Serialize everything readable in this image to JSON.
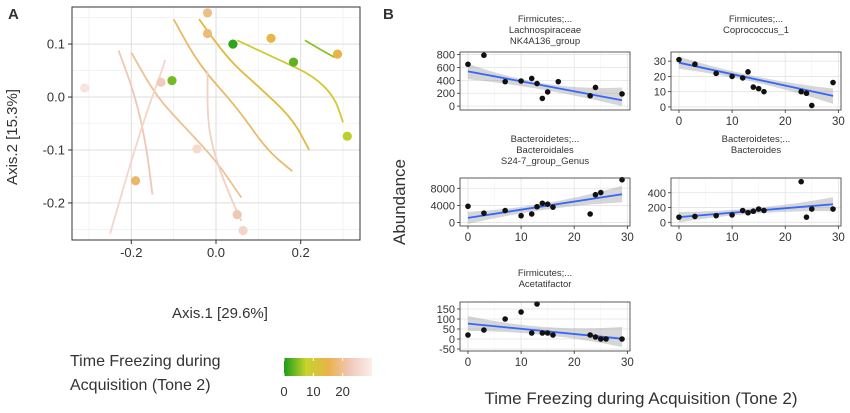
{
  "panel_a": {
    "letter": "A",
    "chart_data": {
      "type": "scatter",
      "title": "",
      "xlabel": "Axis.1 [29.6%]",
      "ylabel": "Axis.2 [15.3%]",
      "xlim": [
        -0.34,
        0.34
      ],
      "ylim": [
        -0.27,
        0.17
      ],
      "x_ticks": [
        -0.2,
        0.0,
        0.2
      ],
      "x_tick_labels": [
        "-0.2",
        "0.0",
        "0.2"
      ],
      "y_ticks": [
        0.1,
        0.0,
        -0.1,
        -0.2
      ],
      "y_tick_labels": [
        "0.1",
        "0.0",
        "-0.1",
        "-0.2"
      ],
      "points": [
        {
          "x": -0.31,
          "y": 0.017,
          "t": 28
        },
        {
          "x": -0.19,
          "y": -0.158,
          "t": 17
        },
        {
          "x": -0.13,
          "y": 0.028,
          "t": 23
        },
        {
          "x": -0.104,
          "y": 0.031,
          "t": 4
        },
        {
          "x": -0.045,
          "y": -0.098,
          "t": 26
        },
        {
          "x": -0.02,
          "y": 0.159,
          "t": 19
        },
        {
          "x": -0.02,
          "y": 0.12,
          "t": 18
        },
        {
          "x": 0.04,
          "y": 0.1,
          "t": 1
        },
        {
          "x": 0.05,
          "y": -0.222,
          "t": 22
        },
        {
          "x": 0.064,
          "y": -0.252,
          "t": 25
        },
        {
          "x": 0.13,
          "y": 0.111,
          "t": 14
        },
        {
          "x": 0.183,
          "y": 0.066,
          "t": 3
        },
        {
          "x": 0.287,
          "y": 0.081,
          "t": 15
        },
        {
          "x": 0.31,
          "y": -0.074,
          "t": 7
        }
      ],
      "contours": [
        {
          "t": 5,
          "points": [
            [
              0.21,
              0.107
            ],
            [
              0.25,
              0.088
            ],
            [
              0.28,
              0.075
            ]
          ]
        },
        {
          "t": 10,
          "points": [
            [
              0.05,
              0.107
            ],
            [
              0.15,
              0.07
            ],
            [
              0.23,
              0.04
            ],
            [
              0.28,
              0.0
            ],
            [
              0.3,
              -0.048
            ]
          ]
        },
        {
          "t": 13,
          "points": [
            [
              -0.04,
              0.147
            ],
            [
              0.03,
              0.07
            ],
            [
              0.1,
              0.02
            ],
            [
              0.18,
              -0.04
            ],
            [
              0.22,
              -0.1
            ]
          ]
        },
        {
          "t": 17,
          "points": [
            [
              -0.1,
              0.147
            ],
            [
              -0.04,
              0.06
            ],
            [
              0.05,
              -0.02
            ],
            [
              0.12,
              -0.1
            ],
            [
              0.18,
              -0.14
            ]
          ]
        },
        {
          "t": 20,
          "points": [
            [
              -0.2,
              0.084
            ],
            [
              -0.14,
              0.0
            ],
            [
              -0.07,
              -0.06
            ],
            [
              0.0,
              -0.12
            ],
            [
              0.06,
              -0.19
            ]
          ]
        },
        {
          "t": 22,
          "points": [
            [
              -0.23,
              0.088
            ],
            [
              -0.19,
              0.0
            ],
            [
              -0.165,
              -0.09
            ],
            [
              -0.15,
              -0.184
            ]
          ]
        },
        {
          "t": 24,
          "points": [
            [
              -0.02,
              0.049
            ],
            [
              -0.02,
              -0.05
            ],
            [
              0.0,
              -0.12
            ],
            [
              0.04,
              -0.2
            ],
            [
              0.06,
              -0.234
            ]
          ]
        },
        {
          "t": 25,
          "points": [
            [
              -0.25,
              -0.258
            ],
            [
              -0.2,
              -0.12
            ],
            [
              -0.16,
              -0.02
            ],
            [
              -0.13,
              0.045
            ],
            [
              -0.12,
              0.07
            ]
          ]
        }
      ]
    },
    "legend": {
      "title_line1": "Time Freezing during",
      "title_line2": "Acquisition (Tone 2)",
      "ticks": [
        0,
        10,
        20
      ],
      "tick_labels": [
        "0",
        "10",
        "20"
      ],
      "range": [
        0,
        30
      ],
      "color_stops": [
        "#1a9c1a",
        "#c6d42a",
        "#e9b24a",
        "#f0c8b8",
        "#fbeeea"
      ]
    }
  },
  "panel_b": {
    "letter": "B",
    "chart_data": {
      "type": "scatter",
      "xlabel": "Time Freezing during Acquisition (Tone 2)",
      "ylabel": "Abundance",
      "xlim": [
        -1.5,
        30.5
      ],
      "x_ticks": [
        0,
        10,
        20,
        30
      ],
      "x_tick_labels": [
        "0",
        "10",
        "20",
        "30"
      ],
      "facets": [
        {
          "title": [
            "Firmicutes;...",
            "Lachnospiraceae",
            "NK4A136_group"
          ],
          "ylim": [
            -60,
            840
          ],
          "y_ticks": [
            0,
            200,
            400,
            600,
            800
          ],
          "y_tick_labels": [
            "0",
            "200",
            "400",
            "600",
            "800"
          ],
          "fit": {
            "intercept": 540,
            "slope": -15.5
          },
          "band": [
            [
              0,
              420,
              660
            ],
            [
              14.5,
              250,
              350
            ],
            [
              29,
              0,
              290
            ]
          ],
          "points": [
            [
              0,
              650
            ],
            [
              3,
              790
            ],
            [
              7,
              380
            ],
            [
              10,
              390
            ],
            [
              12,
              430
            ],
            [
              13,
              350
            ],
            [
              14,
              120
            ],
            [
              15,
              220
            ],
            [
              17,
              380
            ],
            [
              23,
              160
            ],
            [
              24,
              290
            ],
            [
              29,
              190
            ]
          ]
        },
        {
          "title": [
            "Firmicutes;...",
            "Coprococcus_1"
          ],
          "ylim": [
            -2,
            36
          ],
          "y_ticks": [
            0,
            10,
            20,
            30
          ],
          "y_tick_labels": [
            "0",
            "10",
            "20",
            "30"
          ],
          "fit": {
            "intercept": 29,
            "slope": -0.75
          },
          "band": [
            [
              0,
              25,
              33
            ],
            [
              14.5,
              16,
              20
            ],
            [
              29,
              2,
              12
            ]
          ],
          "points": [
            [
              0,
              31
            ],
            [
              3,
              28
            ],
            [
              7,
              22
            ],
            [
              10,
              20
            ],
            [
              12,
              19
            ],
            [
              13,
              23
            ],
            [
              14,
              13
            ],
            [
              15,
              12
            ],
            [
              16,
              10
            ],
            [
              23,
              10
            ],
            [
              24,
              9
            ],
            [
              25,
              1
            ],
            [
              29,
              16
            ]
          ]
        },
        {
          "title": [
            "Bacteroidetes;...",
            "Bacteroidales",
            "S24-7_group_Genus"
          ],
          "ylim": [
            -800,
            10400
          ],
          "y_ticks": [
            0,
            4000,
            8000
          ],
          "y_tick_labels": [
            "0",
            "4000",
            "8000"
          ],
          "fit": {
            "intercept": 1100,
            "slope": 190
          },
          "band": [
            [
              0,
              -300,
              2500
            ],
            [
              14.5,
              3000,
              4500
            ],
            [
              29,
              4700,
              8600
            ]
          ],
          "points": [
            [
              0,
              3800
            ],
            [
              3,
              2200
            ],
            [
              7,
              2800
            ],
            [
              10,
              1600
            ],
            [
              12,
              2000
            ],
            [
              13,
              3700
            ],
            [
              14,
              4500
            ],
            [
              15,
              4300
            ],
            [
              16,
              3600
            ],
            [
              23,
              2000
            ],
            [
              24,
              6500
            ],
            [
              25,
              7000
            ],
            [
              29,
              10000
            ]
          ]
        },
        {
          "title": [
            "Bacteroidetes;...",
            "Bacteroides"
          ],
          "ylim": [
            -50,
            600
          ],
          "y_ticks": [
            0,
            200,
            400
          ],
          "y_tick_labels": [
            "0",
            "200",
            "400"
          ],
          "fit": {
            "intercept": 70,
            "slope": 6
          },
          "band": [
            [
              0,
              0,
              140
            ],
            [
              14.5,
              120,
              195
            ],
            [
              29,
              150,
              340
            ]
          ],
          "points": [
            [
              0,
              70
            ],
            [
              3,
              80
            ],
            [
              7,
              90
            ],
            [
              10,
              100
            ],
            [
              12,
              160
            ],
            [
              13,
              130
            ],
            [
              14,
              150
            ],
            [
              15,
              180
            ],
            [
              16,
              160
            ],
            [
              23,
              550
            ],
            [
              24,
              70
            ],
            [
              25,
              180
            ],
            [
              29,
              180
            ]
          ]
        },
        {
          "title": [
            "Firmicutes;...",
            "Acetatifactor"
          ],
          "ylim": [
            -60,
            185
          ],
          "y_ticks": [
            150,
            100,
            50,
            0,
            -50
          ],
          "y_tick_labels": [
            "150",
            "100",
            "50",
            "0",
            "-50"
          ],
          "fit": {
            "intercept": 77,
            "slope": -2.6
          },
          "band": [
            [
              0,
              40,
              115
            ],
            [
              14.5,
              20,
              60
            ],
            [
              29,
              -40,
              60
            ]
          ],
          "points": [
            [
              0,
              20
            ],
            [
              3,
              45
            ],
            [
              7,
              100
            ],
            [
              10,
              135
            ],
            [
              12,
              30
            ],
            [
              13,
              175
            ],
            [
              14,
              30
            ],
            [
              15,
              30
            ],
            [
              16,
              20
            ],
            [
              23,
              20
            ],
            [
              24,
              10
            ],
            [
              25,
              0
            ],
            [
              26,
              0
            ],
            [
              29,
              0
            ]
          ]
        }
      ]
    }
  }
}
